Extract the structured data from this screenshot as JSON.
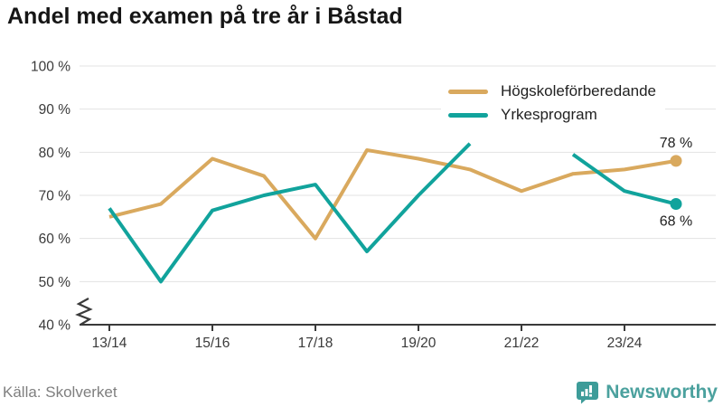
{
  "title": "Andel med examen på tre år i Båstad",
  "source": "Källa: Skolverket",
  "branding": {
    "name": "Newsworthy",
    "icon": "bar-chart-speech-bubble-icon",
    "icon_color": "#3d9c99",
    "text_color": "#4ba19e"
  },
  "legend": [
    {
      "label": "Högskoleförberedande",
      "color": "#d9a95e"
    },
    {
      "label": "Yrkesprogram",
      "color": "#11a39c"
    }
  ],
  "chart_data": {
    "type": "line",
    "title": "Andel med examen på tre år i Båstad",
    "xlabel": "",
    "ylabel": "",
    "x": [
      "13/14",
      "14/15",
      "15/16",
      "16/17",
      "17/18",
      "18/19",
      "19/20",
      "20/21",
      "21/22",
      "22/23",
      "23/24",
      "24/25"
    ],
    "x_tick_step": 2,
    "y_ticks": [
      {
        "label": "100 %",
        "value": 100
      },
      {
        "label": "90 %",
        "value": 90
      },
      {
        "label": "80 %",
        "value": 80
      },
      {
        "label": "70 %",
        "value": 70
      },
      {
        "label": "60 %",
        "value": 60
      },
      {
        "label": "50 %",
        "value": 50
      },
      {
        "label": "40 %",
        "value": 40
      }
    ],
    "ylim": [
      40,
      100
    ],
    "y_axis_break": true,
    "grid": "horizontal",
    "legend_position": "top-right-inside",
    "series": [
      {
        "name": "Högskoleförberedande",
        "color": "#d9a95e",
        "values": [
          65,
          68,
          78.5,
          74.5,
          60,
          80.5,
          78.5,
          76,
          71,
          75,
          76,
          78
        ],
        "end_label": "78 %",
        "end_label_side": "above"
      },
      {
        "name": "Yrkesprogram",
        "color": "#11a39c",
        "values": [
          67,
          50,
          66.5,
          70,
          72.5,
          57,
          70,
          82,
          null,
          79.5,
          71,
          68
        ],
        "end_label": "68 %",
        "end_label_side": "below"
      }
    ]
  }
}
